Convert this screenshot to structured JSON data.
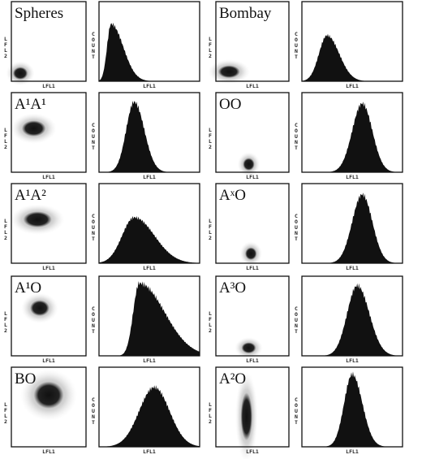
{
  "figure": {
    "axis_labels": {
      "scatter_x": "LFL1",
      "scatter_y": "LFL2",
      "histogram_x": "LFL1",
      "histogram_y": "COUNT"
    },
    "panels": [
      "Spheres",
      "A¹A¹",
      "A¹A²",
      "A¹O",
      "BO",
      "Bombay",
      "OO",
      "AˣO",
      "A³O",
      "A²O"
    ]
  }
}
